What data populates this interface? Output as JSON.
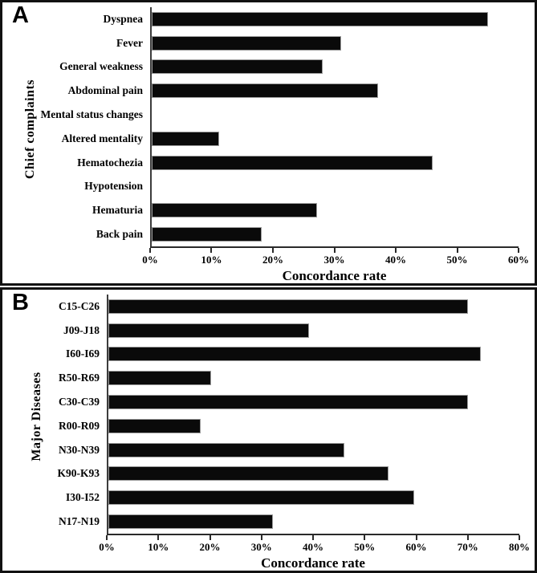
{
  "figure": {
    "background_color": "#ffffff",
    "border_color": "#111111",
    "bar_color": "#0a0a0a",
    "axis_color": "#2a2a2a"
  },
  "chart_data": [
    {
      "type": "bar",
      "orientation": "horizontal",
      "panel_letter": "A",
      "ylabel": "Chief complaints",
      "xlabel": "Concordance rate",
      "categories": [
        "Dyspnea",
        "Fever",
        "General weakness",
        "Abdominal pain",
        "Mental status changes",
        "Altered mentality",
        "Hematochezia",
        "Hypotension",
        "Hematuria",
        "Back pain"
      ],
      "values": [
        55,
        31,
        28,
        37,
        0,
        11,
        46,
        0,
        27,
        18
      ],
      "unit": "%",
      "xlim": [
        0,
        60
      ],
      "x_tick_labels": [
        "0%",
        "10%",
        "20%",
        "30%",
        "40%",
        "50%",
        "60%"
      ],
      "bar_color": "#0a0a0a",
      "grid": false,
      "legend": false
    },
    {
      "type": "bar",
      "orientation": "horizontal",
      "panel_letter": "B",
      "ylabel": "Major Diseases",
      "xlabel": "Concordance rate",
      "categories": [
        "C15-C26",
        "J09-J18",
        "I60-I69",
        "R50-R69",
        "C30-C39",
        "R00-R09",
        "N30-N39",
        "K90-K93",
        "I30-I52",
        "N17-N19"
      ],
      "values": [
        70,
        39,
        72.5,
        20,
        70,
        18,
        46,
        54.5,
        59.5,
        32
      ],
      "unit": "%",
      "xlim": [
        0,
        80
      ],
      "x_tick_labels": [
        "0%",
        "10%",
        "20%",
        "30%",
        "40%",
        "50%",
        "60%",
        "70%",
        "80%"
      ],
      "bar_color": "#0a0a0a",
      "grid": false,
      "legend": false
    }
  ]
}
